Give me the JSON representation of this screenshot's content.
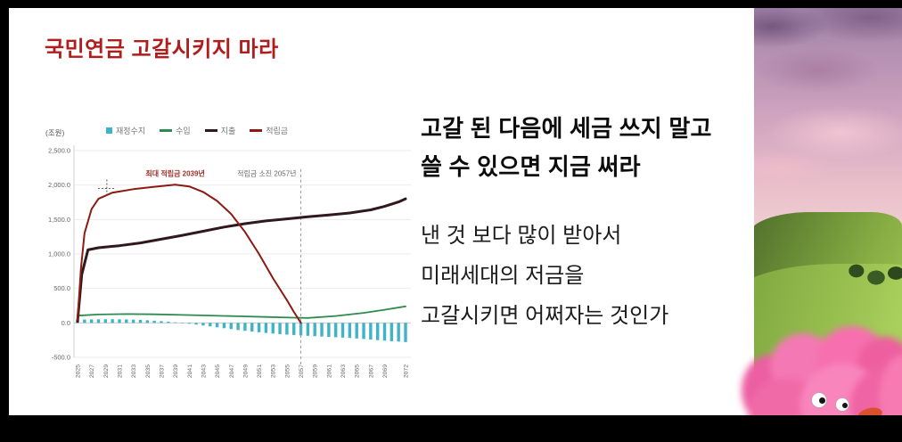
{
  "slide": {
    "title": "국민연금 고갈시키지 마라",
    "title_color": "#b01d1d",
    "headline_lines": [
      "고갈 된 다음에 세금 쓰지 말고",
      "쓸 수 있으면 지금 써라"
    ],
    "body_lines": [
      "낸 것 보다 많이 받아서",
      "미래세대의 저금을",
      "고갈시키면 어쩌자는 것인가"
    ]
  },
  "chart_data": {
    "type": "line",
    "unit_label": "(조원)",
    "ylim": [
      -500,
      2500
    ],
    "yticks": [
      {
        "label": "2,500.0",
        "value": 2500
      },
      {
        "label": "2,000.0",
        "value": 2000
      },
      {
        "label": "1,500.0",
        "value": 1500
      },
      {
        "label": "1,000.0",
        "value": 1000
      },
      {
        "label": "500.0",
        "value": 500
      },
      {
        "label": "0.0",
        "value": 0
      },
      {
        "label": "-500.0",
        "value": -500
      }
    ],
    "x_range": [
      2025,
      2072
    ],
    "xticks": [
      2025,
      2027,
      2029,
      2031,
      2033,
      2035,
      2037,
      2039,
      2041,
      2043,
      2045,
      2047,
      2049,
      2051,
      2053,
      2055,
      2057,
      2059,
      2061,
      2063,
      2065,
      2067,
      2069,
      2072
    ],
    "legend": [
      {
        "key": "balance",
        "label": "재정수지",
        "color": "#3fb4c8",
        "swatch": "square"
      },
      {
        "key": "income",
        "label": "수입",
        "color": "#2e8b4f",
        "swatch": "line"
      },
      {
        "key": "expenditure",
        "label": "지출",
        "color": "#30191d",
        "swatch": "line"
      },
      {
        "key": "reserve",
        "label": "적립금",
        "color": "#8d1a12",
        "swatch": "line"
      }
    ],
    "balance_bars": {
      "start_year": 2025,
      "color": "#3fb4c8",
      "values": [
        45,
        48,
        50,
        52,
        53,
        53,
        52,
        50,
        47,
        43,
        38,
        32,
        25,
        17,
        8,
        -2,
        -13,
        -25,
        -38,
        -51,
        -64,
        -77,
        -90,
        -103,
        -115,
        -126,
        -136,
        -146,
        -155,
        -163,
        -170,
        -176,
        -182,
        -188,
        -193,
        -198,
        -203,
        -208,
        -213,
        -218,
        -226,
        -234,
        -242,
        -250,
        -258,
        -266,
        -271,
        -278
      ]
    },
    "lines": [
      {
        "key": "income",
        "color": "#2e8b4f",
        "width": 1.8,
        "points": [
          [
            2025,
            105
          ],
          [
            2028,
            122
          ],
          [
            2032,
            128
          ],
          [
            2036,
            125
          ],
          [
            2040,
            116
          ],
          [
            2044,
            106
          ],
          [
            2048,
            96
          ],
          [
            2052,
            86
          ],
          [
            2056,
            76
          ],
          [
            2058,
            72
          ],
          [
            2062,
            100
          ],
          [
            2066,
            145
          ],
          [
            2069,
            190
          ],
          [
            2072,
            240
          ]
        ]
      },
      {
        "key": "expenditure",
        "color": "#30191d",
        "width": 3,
        "points": [
          [
            2025,
            20
          ],
          [
            2025.6,
            700
          ],
          [
            2026.5,
            1060
          ],
          [
            2028,
            1090
          ],
          [
            2031,
            1120
          ],
          [
            2034,
            1160
          ],
          [
            2037,
            1215
          ],
          [
            2040,
            1270
          ],
          [
            2043,
            1330
          ],
          [
            2046,
            1390
          ],
          [
            2049,
            1440
          ],
          [
            2052,
            1480
          ],
          [
            2055,
            1510
          ],
          [
            2058,
            1540
          ],
          [
            2061,
            1565
          ],
          [
            2064,
            1595
          ],
          [
            2067,
            1640
          ],
          [
            2069,
            1690
          ],
          [
            2071,
            1755
          ],
          [
            2072,
            1800
          ]
        ]
      },
      {
        "key": "reserve",
        "color": "#8d1a12",
        "width": 2,
        "points": [
          [
            2025,
            40
          ],
          [
            2025.5,
            800
          ],
          [
            2026,
            1300
          ],
          [
            2027,
            1650
          ],
          [
            2028,
            1800
          ],
          [
            2030,
            1890
          ],
          [
            2033,
            1940
          ],
          [
            2036,
            1975
          ],
          [
            2039,
            2005
          ],
          [
            2041,
            1980
          ],
          [
            2043,
            1900
          ],
          [
            2045,
            1770
          ],
          [
            2047,
            1580
          ],
          [
            2049,
            1320
          ],
          [
            2051,
            1000
          ],
          [
            2053,
            650
          ],
          [
            2055,
            330
          ],
          [
            2056,
            160
          ],
          [
            2057,
            0
          ]
        ]
      }
    ],
    "annotations": {
      "peak": {
        "text": "최대 적립금 2039년",
        "year": 2039,
        "value": 2130,
        "color": "#a03028"
      },
      "depletion": {
        "text": "적립금 소진 2057년",
        "year": 2057,
        "value": 2130,
        "color": "#666666"
      },
      "depletion_line_year": 2057,
      "crosshair": {
        "year": 2029.2,
        "value": 1950
      }
    }
  }
}
